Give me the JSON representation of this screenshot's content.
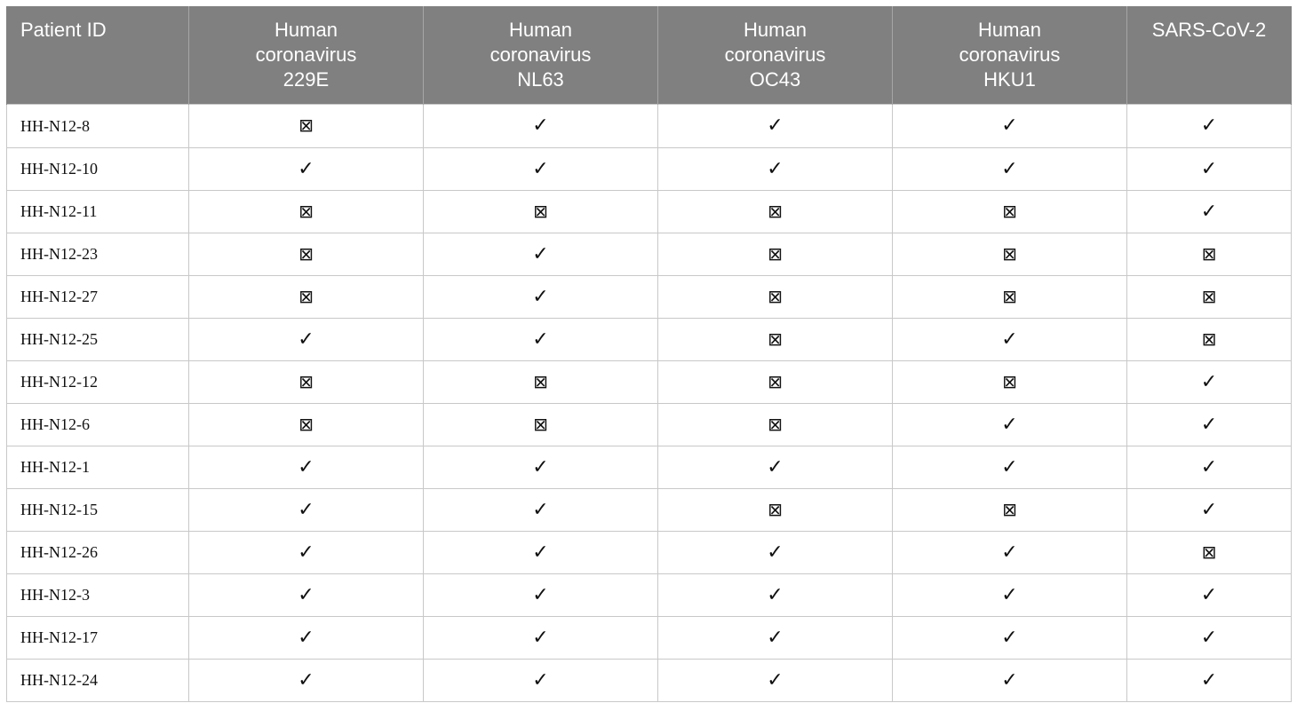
{
  "table": {
    "headers": [
      [
        "Patient ID"
      ],
      [
        "Human",
        "coronavirus",
        "229E"
      ],
      [
        "Human",
        "coronavirus",
        "NL63"
      ],
      [
        "Human",
        "coronavirus",
        "OC43"
      ],
      [
        "Human",
        "coronavirus",
        "HKU1"
      ],
      [
        "SARS-CoV-2"
      ]
    ],
    "marks": {
      "yes": "✓",
      "no": "⊠"
    },
    "rows": [
      {
        "id": "HH-N12-8",
        "values": [
          "no",
          "yes",
          "yes",
          "yes",
          "yes"
        ]
      },
      {
        "id": "HH-N12-10",
        "values": [
          "yes",
          "yes",
          "yes",
          "yes",
          "yes"
        ]
      },
      {
        "id": "HH-N12-11",
        "values": [
          "no",
          "no",
          "no",
          "no",
          "yes"
        ]
      },
      {
        "id": "HH-N12-23",
        "values": [
          "no",
          "yes",
          "no",
          "no",
          "no"
        ]
      },
      {
        "id": "HH-N12-27",
        "values": [
          "no",
          "yes",
          "no",
          "no",
          "no"
        ]
      },
      {
        "id": "HH-N12-25",
        "values": [
          "yes",
          "yes",
          "no",
          "yes",
          "no"
        ]
      },
      {
        "id": "HH-N12-12",
        "values": [
          "no",
          "no",
          "no",
          "no",
          "yes"
        ]
      },
      {
        "id": "HH-N12-6",
        "values": [
          "no",
          "no",
          "no",
          "yes",
          "yes"
        ]
      },
      {
        "id": "HH-N12-1",
        "values": [
          "yes",
          "yes",
          "yes",
          "yes",
          "yes"
        ]
      },
      {
        "id": "HH-N12-15",
        "values": [
          "yes",
          "yes",
          "no",
          "no",
          "yes"
        ]
      },
      {
        "id": "HH-N12-26",
        "values": [
          "yes",
          "yes",
          "yes",
          "yes",
          "no"
        ]
      },
      {
        "id": "HH-N12-3",
        "values": [
          "yes",
          "yes",
          "yes",
          "yes",
          "yes"
        ]
      },
      {
        "id": "HH-N12-17",
        "values": [
          "yes",
          "yes",
          "yes",
          "yes",
          "yes"
        ]
      },
      {
        "id": "HH-N12-24",
        "values": [
          "yes",
          "yes",
          "yes",
          "yes",
          "yes"
        ]
      }
    ]
  }
}
